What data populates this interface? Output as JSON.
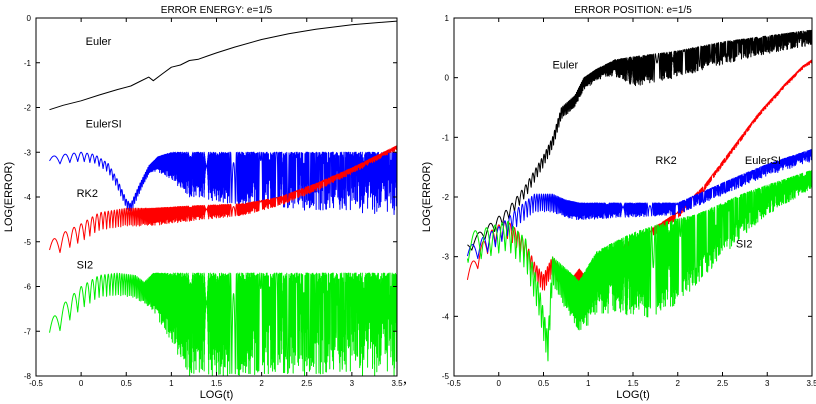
{
  "separator": ",",
  "chart_data": [
    {
      "type": "line",
      "title": "ERROR ENERGY: e=1/5",
      "xlabel": "LOG(t)",
      "ylabel": "LOG(ERROR)",
      "xlim": [
        -0.5,
        3.5
      ],
      "ylim": [
        -8,
        0
      ],
      "xticks": [
        "-0.5",
        "0",
        "0.5",
        "1",
        "1.5",
        "2",
        "2.5",
        "3",
        "3.5"
      ],
      "yticks": [
        "-8",
        "-7",
        "-6",
        "-5",
        "-4",
        "-3",
        "-2",
        "-1",
        "0"
      ],
      "grid": false,
      "legend": "none",
      "series": [
        {
          "name": "Euler",
          "color": "#000000",
          "style": "smooth",
          "points": [
            [
              -0.35,
              -2.05
            ],
            [
              -0.2,
              -1.95
            ],
            [
              0,
              -1.85
            ],
            [
              0.2,
              -1.72
            ],
            [
              0.4,
              -1.6
            ],
            [
              0.55,
              -1.52
            ],
            [
              0.65,
              -1.42
            ],
            [
              0.75,
              -1.32
            ],
            [
              0.8,
              -1.4
            ],
            [
              0.9,
              -1.25
            ],
            [
              1.0,
              -1.1
            ],
            [
              1.1,
              -1.05
            ],
            [
              1.2,
              -0.95
            ],
            [
              1.3,
              -0.92
            ],
            [
              1.4,
              -0.85
            ],
            [
              1.5,
              -0.78
            ],
            [
              1.7,
              -0.65
            ],
            [
              2.0,
              -0.48
            ],
            [
              2.3,
              -0.35
            ],
            [
              2.6,
              -0.25
            ],
            [
              3.0,
              -0.15
            ],
            [
              3.5,
              -0.07
            ]
          ]
        },
        {
          "name": "EulerSI",
          "color": "#0000ff",
          "style": "oscillating",
          "label_pos": [
            0.05,
            -2.45
          ],
          "points": [
            [
              -0.35,
              -3.1
            ],
            [
              -0.2,
              -3.05
            ],
            [
              0,
              -3.0
            ],
            [
              0.15,
              -3.05
            ],
            [
              0.3,
              -3.25
            ],
            [
              0.4,
              -3.6
            ],
            [
              0.5,
              -4.05
            ],
            [
              0.55,
              -4.15
            ],
            [
              0.65,
              -3.7
            ],
            [
              0.75,
              -3.3
            ],
            [
              0.85,
              -3.1
            ],
            [
              1.0,
              -3.0
            ],
            [
              3.5,
              -3.0
            ]
          ],
          "osc_amp": [
            [
              0.78,
              0.2
            ],
            [
              1.2,
              1.0
            ],
            [
              1.8,
              1.2
            ],
            [
              2.5,
              1.3
            ],
            [
              3.5,
              1.4
            ]
          ],
          "osc_freq": 60
        },
        {
          "name": "RK2",
          "color": "#ff0000",
          "style": "oscillating",
          "points": [
            [
              -0.35,
              -5.0
            ],
            [
              -0.2,
              -4.8
            ],
            [
              0,
              -4.6
            ],
            [
              0.2,
              -4.35
            ],
            [
              0.5,
              -4.25
            ],
            [
              0.8,
              -4.25
            ],
            [
              1.2,
              -4.2
            ],
            [
              1.8,
              -4.15
            ],
            [
              2.2,
              -4.0
            ],
            [
              2.6,
              -3.7
            ],
            [
              3.0,
              -3.35
            ],
            [
              3.5,
              -2.85
            ]
          ],
          "osc_amp": [
            [
              0.78,
              0.4
            ],
            [
              1.5,
              0.3
            ],
            [
              2.2,
              0.2
            ],
            [
              3.5,
              0.1
            ]
          ],
          "osc_freq": 60
        },
        {
          "name": "SI2",
          "color": "#00ee00",
          "style": "oscillating",
          "points": [
            [
              -0.35,
              -6.8
            ],
            [
              -0.2,
              -6.4
            ],
            [
              0,
              -6.0
            ],
            [
              0.2,
              -5.75
            ],
            [
              0.4,
              -5.7
            ],
            [
              0.6,
              -5.75
            ],
            [
              0.7,
              -5.9
            ],
            [
              0.8,
              -5.7
            ],
            [
              3.5,
              -5.7
            ]
          ],
          "osc_amp": [
            [
              0.7,
              0.5
            ],
            [
              1.2,
              2.3
            ],
            [
              2.5,
              2.3
            ],
            [
              3.5,
              2.3
            ]
          ],
          "osc_freq": 60
        }
      ],
      "annotations": [
        {
          "text": "Euler",
          "x": 0.05,
          "y": -0.6
        },
        {
          "text": "EulerSI",
          "x": 0.05,
          "y": -2.45
        },
        {
          "text": "RK2",
          "x": -0.05,
          "y": -4.0
        },
        {
          "text": "SI2",
          "x": -0.05,
          "y": -5.6
        }
      ]
    },
    {
      "type": "line",
      "title": "ERROR POSITION: e=1/5",
      "xlabel": "LOG(t)",
      "ylabel": "LOG(ERROR)",
      "xlim": [
        -0.5,
        3.5
      ],
      "ylim": [
        -5,
        1
      ],
      "xticks": [
        "-0.5",
        "0",
        "0.5",
        "1",
        "1.5",
        "2",
        "2.5",
        "3",
        "3.5"
      ],
      "yticks": [
        "-5",
        "-4",
        "-3",
        "-2",
        "-1",
        "0",
        "1"
      ],
      "grid": false,
      "legend": "none",
      "series": [
        {
          "name": "Euler",
          "color": "#000000",
          "style": "oscillating",
          "points": [
            [
              -0.35,
              -2.75
            ],
            [
              -0.1,
              -2.45
            ],
            [
              0.1,
              -2.2
            ],
            [
              0.3,
              -1.8
            ],
            [
              0.5,
              -1.3
            ],
            [
              0.6,
              -1.0
            ],
            [
              0.7,
              -0.5
            ],
            [
              0.85,
              -0.3
            ],
            [
              0.95,
              0.0
            ],
            [
              1.1,
              0.15
            ],
            [
              1.3,
              0.3
            ],
            [
              1.5,
              0.35
            ],
            [
              2.0,
              0.45
            ],
            [
              2.5,
              0.6
            ],
            [
              3.0,
              0.7
            ],
            [
              3.5,
              0.8
            ]
          ],
          "osc_amp": [
            [
              1.2,
              0.2
            ],
            [
              1.5,
              0.5
            ],
            [
              2.0,
              0.45
            ],
            [
              3.0,
              0.3
            ],
            [
              3.5,
              0.25
            ]
          ],
          "osc_freq": 50
        },
        {
          "name": "RK2",
          "color": "#ff0000",
          "style": "oscillating",
          "points": [
            [
              -0.35,
              -3.25
            ],
            [
              -0.2,
              -2.8
            ],
            [
              -0.05,
              -2.5
            ],
            [
              0.1,
              -2.4
            ],
            [
              0.2,
              -2.55
            ],
            [
              0.3,
              -2.75
            ],
            [
              0.4,
              -3.1
            ],
            [
              0.5,
              -3.3
            ],
            [
              0.6,
              -3.0
            ],
            [
              0.7,
              -3.2
            ],
            [
              0.8,
              -3.4
            ],
            [
              0.9,
              -3.2
            ],
            [
              1.0,
              -3.4
            ],
            [
              1.2,
              -3.0
            ],
            [
              1.5,
              -2.7
            ],
            [
              1.8,
              -2.45
            ],
            [
              2.0,
              -2.25
            ],
            [
              2.3,
              -1.8
            ],
            [
              2.6,
              -1.2
            ],
            [
              2.9,
              -0.6
            ],
            [
              3.2,
              -0.1
            ],
            [
              3.4,
              0.2
            ],
            [
              3.5,
              0.3
            ]
          ],
          "osc_amp": [
            [
              1.0,
              0.3
            ],
            [
              1.5,
              0.15
            ],
            [
              2.5,
              0.08
            ],
            [
              3.5,
              0.05
            ]
          ],
          "osc_freq": 60
        },
        {
          "name": "EulerSI",
          "color": "#0000ff",
          "style": "oscillating",
          "points": [
            [
              -0.35,
              -2.85
            ],
            [
              -0.2,
              -2.7
            ],
            [
              0,
              -2.5
            ],
            [
              0.2,
              -2.2
            ],
            [
              0.4,
              -1.95
            ],
            [
              0.6,
              -1.95
            ],
            [
              0.75,
              -2.05
            ],
            [
              0.9,
              -2.1
            ],
            [
              1.2,
              -2.1
            ],
            [
              1.6,
              -2.1
            ],
            [
              2.0,
              -2.1
            ],
            [
              2.3,
              -1.9
            ],
            [
              2.6,
              -1.7
            ],
            [
              3.0,
              -1.45
            ],
            [
              3.5,
              -1.2
            ]
          ],
          "osc_amp": [
            [
              0.8,
              0.3
            ],
            [
              1.3,
              0.25
            ],
            [
              2.0,
              0.2
            ],
            [
              3.0,
              0.2
            ],
            [
              3.5,
              0.2
            ]
          ],
          "osc_freq": 60
        },
        {
          "name": "SI2",
          "color": "#00ee00",
          "style": "oscillating",
          "points": [
            [
              -0.35,
              -2.6
            ],
            [
              -0.1,
              -2.5
            ],
            [
              0.1,
              -2.4
            ],
            [
              0.3,
              -2.7
            ],
            [
              0.45,
              -3.5
            ],
            [
              0.55,
              -4.3
            ],
            [
              0.6,
              -3.0
            ],
            [
              0.75,
              -3.2
            ],
            [
              0.9,
              -3.4
            ],
            [
              1.1,
              -2.9
            ],
            [
              1.5,
              -2.6
            ],
            [
              1.9,
              -2.4
            ],
            [
              2.2,
              -2.3
            ],
            [
              2.5,
              -2.1
            ],
            [
              2.8,
              -1.9
            ],
            [
              3.1,
              -1.75
            ],
            [
              3.5,
              -1.55
            ]
          ],
          "osc_amp": [
            [
              0.6,
              0.5
            ],
            [
              1.0,
              1.0
            ],
            [
              1.8,
              1.6
            ],
            [
              2.5,
              0.9
            ],
            [
              3.0,
              0.5
            ],
            [
              3.5,
              0.3
            ]
          ],
          "osc_freq": 55
        }
      ],
      "annotations": [
        {
          "text": "Euler",
          "x": 0.6,
          "y": 0.15
        },
        {
          "text": "RK2",
          "x": 1.75,
          "y": -1.45
        },
        {
          "text": "EulerSI",
          "x": 2.75,
          "y": -1.45
        },
        {
          "text": "SI2",
          "x": 2.65,
          "y": -2.85
        }
      ]
    }
  ]
}
